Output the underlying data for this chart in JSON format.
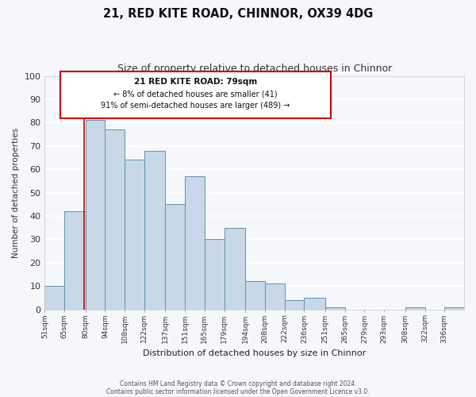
{
  "title1": "21, RED KITE ROAD, CHINNOR, OX39 4DG",
  "title2": "Size of property relative to detached houses in Chinnor",
  "xlabel": "Distribution of detached houses by size in Chinnor",
  "ylabel": "Number of detached properties",
  "footer1": "Contains HM Land Registry data © Crown copyright and database right 2024.",
  "footer2": "Contains public sector information licensed under the Open Government Licence v3.0.",
  "annotation_line1": "21 RED KITE ROAD: 79sqm",
  "annotation_line2": "← 8% of detached houses are smaller (41)",
  "annotation_line3": "91% of semi-detached houses are larger (489) →",
  "bar_edges": [
    51,
    65,
    80,
    94,
    108,
    122,
    137,
    151,
    165,
    179,
    194,
    208,
    222,
    236,
    251,
    265,
    279,
    293,
    308,
    322,
    336
  ],
  "bar_heights": [
    10,
    42,
    81,
    77,
    64,
    68,
    45,
    57,
    30,
    35,
    12,
    11,
    4,
    5,
    1,
    0,
    0,
    0,
    1,
    0,
    1
  ],
  "bar_color": "#c8d8e8",
  "bar_edge_color": "#6090b0",
  "marker_x": 79,
  "marker_color": "#cc0000",
  "ylim": [
    0,
    100
  ],
  "xlim": [
    51,
    350
  ],
  "tick_labels": [
    "51sqm",
    "65sqm",
    "80sqm",
    "94sqm",
    "108sqm",
    "122sqm",
    "137sqm",
    "151sqm",
    "165sqm",
    "179sqm",
    "194sqm",
    "208sqm",
    "222sqm",
    "236sqm",
    "251sqm",
    "265sqm",
    "279sqm",
    "293sqm",
    "308sqm",
    "322sqm",
    "336sqm"
  ],
  "background_color": "#f5f7fa",
  "plot_bg_color": "#f5f7fa",
  "annotation_box_color": "#ffffff",
  "annotation_box_edge": "#cc0000",
  "grid_color": "#ffffff"
}
